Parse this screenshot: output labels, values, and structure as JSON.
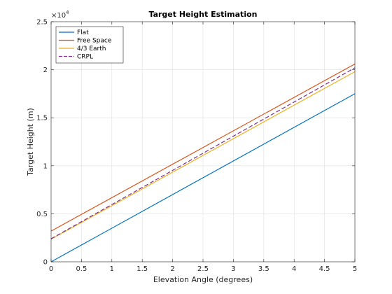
{
  "chart_data": {
    "type": "line",
    "title": "Target Height Estimation",
    "xlabel": "Elevation Angle (degrees)",
    "ylabel": "Target Height (m)",
    "xlim": [
      0,
      5
    ],
    "ylim": [
      0,
      25000
    ],
    "x_ticks": [
      0,
      0.5,
      1,
      1.5,
      2,
      2.5,
      3,
      3.5,
      4,
      4.5,
      5
    ],
    "x_tick_labels": [
      "0",
      "0.5",
      "1",
      "1.5",
      "2",
      "2.5",
      "3",
      "3.5",
      "4",
      "4.5",
      "5"
    ],
    "y_ticks": [
      0,
      5000,
      10000,
      15000,
      20000,
      25000
    ],
    "y_tick_labels": [
      "0",
      "0.5",
      "1",
      "1.5",
      "2",
      "2.5"
    ],
    "y_exponent_label": "×10",
    "y_exponent_power": "4",
    "grid": true,
    "legend_position": "top-left",
    "series": [
      {
        "name": "Flat",
        "color": "#0072BD",
        "dash": "solid",
        "x": [
          0,
          5
        ],
        "y": [
          0,
          17500
        ]
      },
      {
        "name": "Free Space",
        "color": "#D95319",
        "dash": "solid",
        "x": [
          0,
          5
        ],
        "y": [
          3200,
          20600
        ]
      },
      {
        "name": "4/3 Earth",
        "color": "#EDB120",
        "dash": "solid",
        "x": [
          0,
          5
        ],
        "y": [
          2350,
          19800
        ]
      },
      {
        "name": "CRPL",
        "color": "#7E2F8E",
        "dash": "dashed",
        "x": [
          0,
          5
        ],
        "y": [
          2400,
          20200
        ]
      }
    ]
  }
}
